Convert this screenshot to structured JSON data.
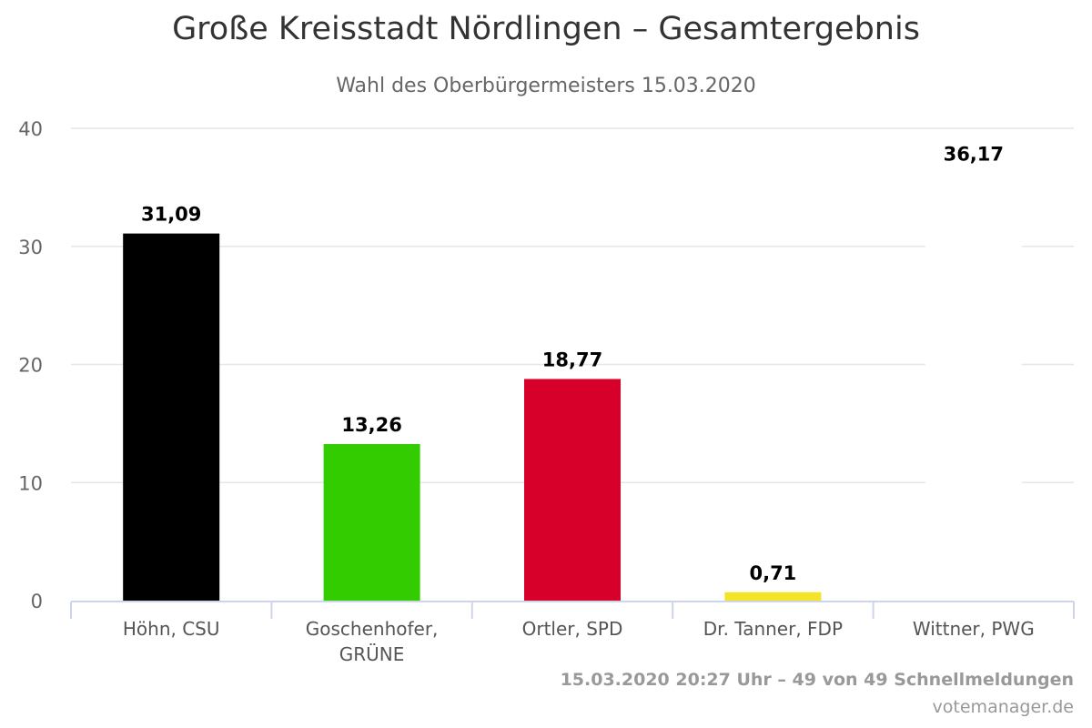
{
  "chart_data": {
    "type": "bar",
    "title": "Große Kreisstadt Nördlingen – Gesamtergebnis",
    "subtitle": "Wahl des Oberbürgermeisters 15.03.2020",
    "categories": [
      "Höhn, CSU",
      "Goschenhofer, GRÜNE",
      "Ortler, SPD",
      "Dr. Tanner, FDP",
      "Wittner, PWG"
    ],
    "category_lines": [
      [
        "Höhn, CSU"
      ],
      [
        "Goschenhofer,",
        "GRÜNE"
      ],
      [
        "Ortler, SPD"
      ],
      [
        "Dr. Tanner, FDP"
      ],
      [
        "Wittner, PWG"
      ]
    ],
    "values": [
      31.09,
      13.26,
      18.77,
      0.71,
      36.17
    ],
    "value_labels": [
      "31,09",
      "13,26",
      "18,77",
      "0,71",
      "36,17"
    ],
    "colors": [
      "#000000",
      "#33cc00",
      "#d6002a",
      "#f5e328",
      "#ffffff"
    ],
    "ylim": [
      0,
      40
    ],
    "yticks": [
      "0",
      "10",
      "20",
      "30",
      "40"
    ],
    "grid": true,
    "legend": "none"
  },
  "footer": {
    "status": "15.03.2020 20:27 Uhr – 49 von 49 Schnellmeldungen",
    "source": "votemanager.de"
  }
}
